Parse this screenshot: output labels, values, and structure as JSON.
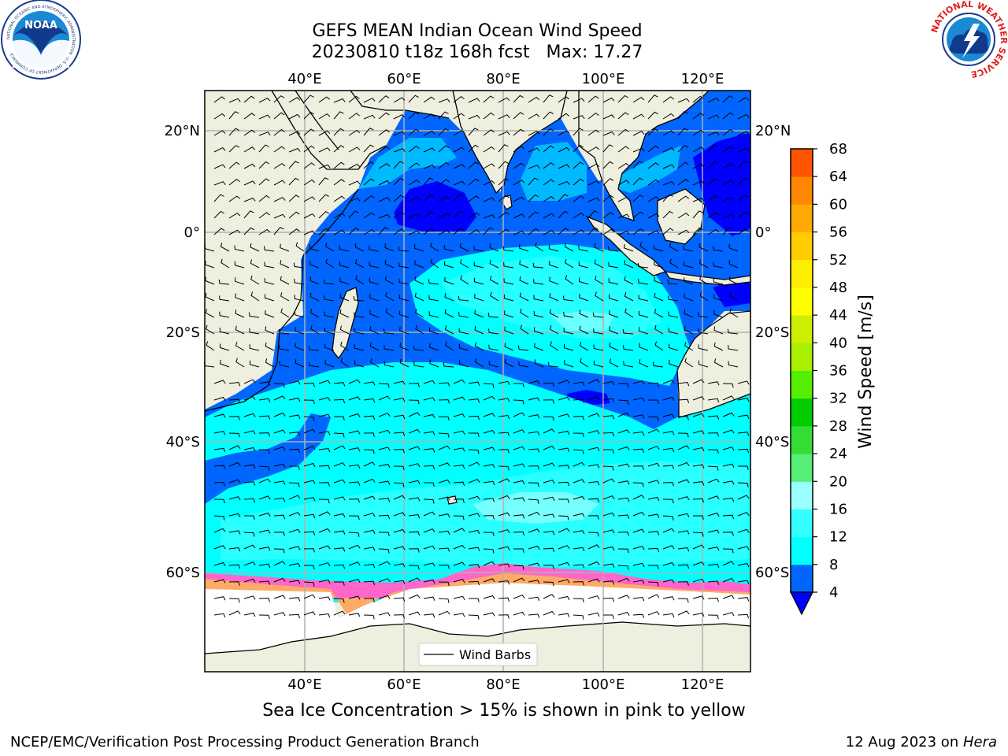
{
  "title_line1": "GEFS MEAN Indian Ocean Wind Speed",
  "title_line2": "20230810 t18z 168h fcst   Max: 17.27",
  "subtitle": "Sea Ice Concentration > 15% is shown in pink to yellow",
  "footer_left": "NCEP/EMC/Verification Post Processing Product Generation Branch",
  "footer_right_date": "12 Aug 2023 on ",
  "footer_right_host": "Hera",
  "logos": {
    "left": "NOAA",
    "left_ring": "NATIONAL OCEANIC AND ATMOSPHERIC ADMINISTRATION · U.S. DEPARTMENT OF COMMERCE",
    "right_ring": "NATIONAL WEATHER SERVICE"
  },
  "map": {
    "lon_ticks": [
      "40°E",
      "60°E",
      "80°E",
      "100°E",
      "120°E"
    ],
    "lat_ticks_left": [
      "20°N",
      "0°",
      "20°S",
      "40°S",
      "60°S"
    ],
    "lat_ticks_right": [
      "20°N",
      "0°",
      "20°S",
      "40°S",
      "60°S"
    ],
    "legend_label": "Wind Barbs"
  },
  "colorbar": {
    "label": "Wind Speed [m/s]",
    "ticks": [
      "4",
      "8",
      "12",
      "16",
      "20",
      "24",
      "28",
      "32",
      "36",
      "40",
      "44",
      "48",
      "52",
      "56",
      "60",
      "64",
      "68"
    ],
    "colors": [
      "#0066ff",
      "#00ffff",
      "#33ffff",
      "#99ffff",
      "#55ee77",
      "#33dd33",
      "#00cc00",
      "#55ee00",
      "#aaee00",
      "#ccee00",
      "#ffff00",
      "#ffee00",
      "#ffcc00",
      "#ffaa00",
      "#ff8800",
      "#ff5500",
      "#ff2200"
    ],
    "extend_min_color": "#0000ff"
  },
  "colors": {
    "land": "#efefdf",
    "wind_4_8": "#0066ff",
    "wind_below_4": "#0000ff",
    "wind_8_12": "#00ffff",
    "wind_12_16": "#33ffff",
    "wind_16_20": "#99ffff"
  }
}
